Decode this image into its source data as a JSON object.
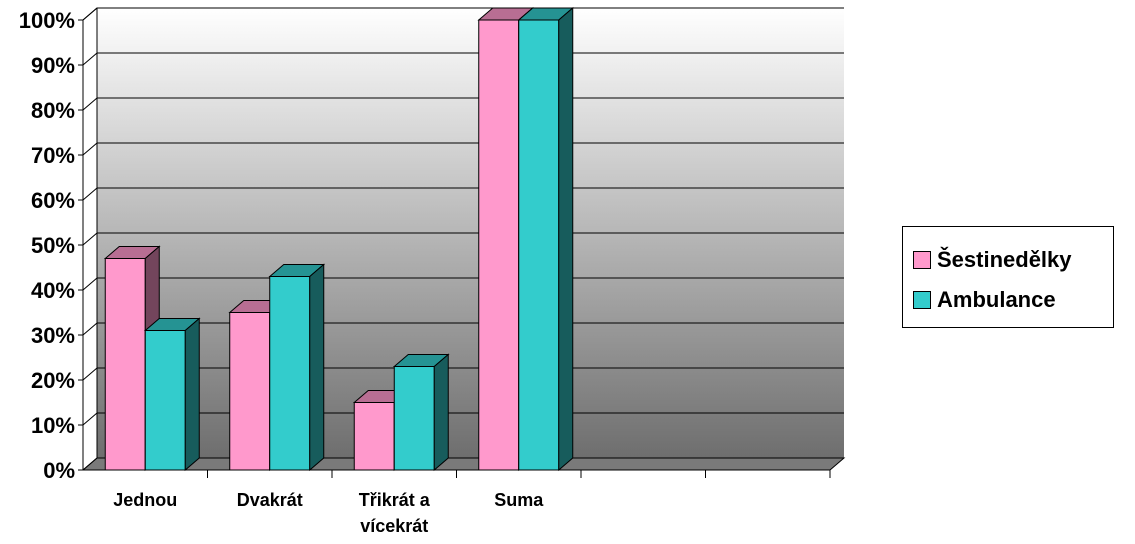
{
  "chart_data": {
    "type": "bar",
    "categories": [
      "Jednou",
      "Dvakrát",
      "Třikrát a vícekrát",
      "Suma",
      "",
      ""
    ],
    "series": [
      {
        "name": "Šestinedělky",
        "values": [
          47,
          35,
          15,
          100,
          null,
          null
        ],
        "color": "#ff99cc"
      },
      {
        "name": "Ambulance",
        "values": [
          31,
          43,
          23,
          100,
          null,
          null
        ],
        "color": "#33cccc"
      }
    ],
    "y_ticks": [
      "0%",
      "10%",
      "20%",
      "30%",
      "40%",
      "50%",
      "60%",
      "70%",
      "80%",
      "90%",
      "100%"
    ],
    "ylim": [
      0,
      100
    ],
    "grid": true,
    "legend_position": "right",
    "three_d": true
  }
}
